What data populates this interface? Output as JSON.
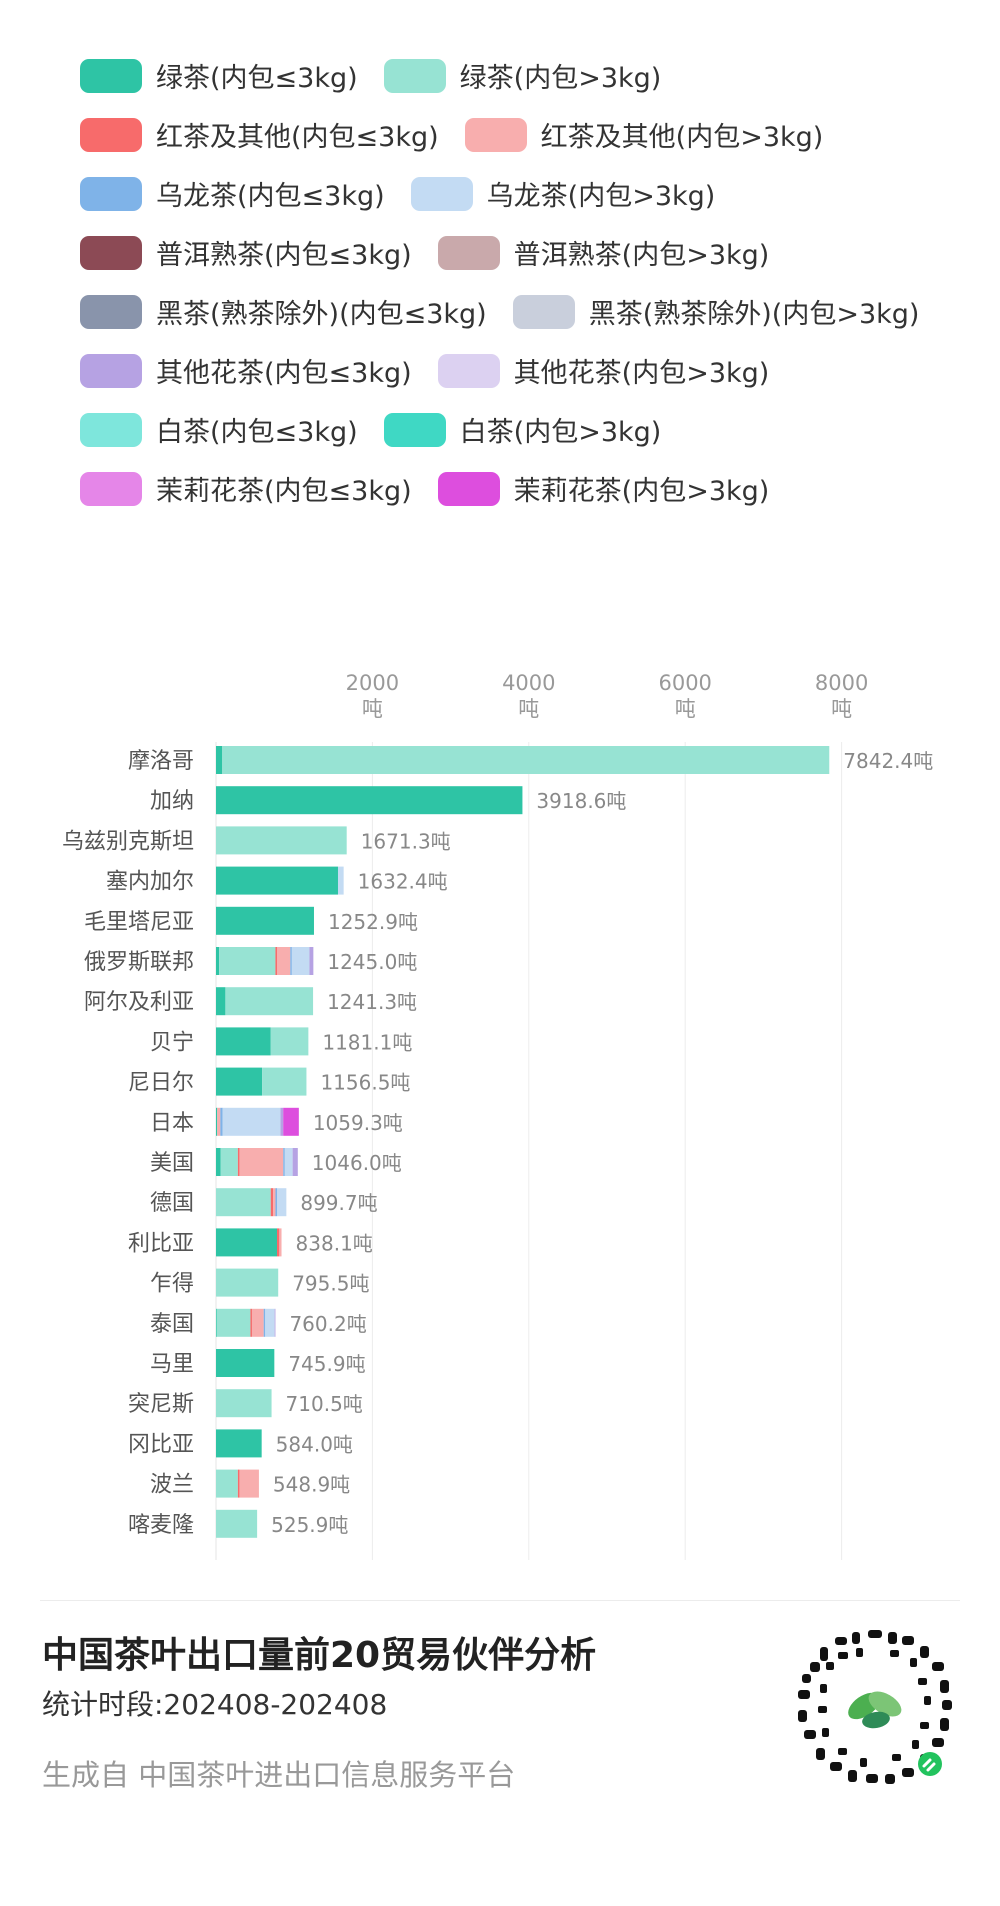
{
  "legend": [
    {
      "label": "绿茶(内包≤3kg)",
      "color": "#2ec4a5"
    },
    {
      "label": "绿茶(内包>3kg)",
      "color": "#97e3d3"
    },
    {
      "label": "红茶及其他(内包≤3kg)",
      "color": "#f76b6b"
    },
    {
      "label": "红茶及其他(内包>3kg)",
      "color": "#f8aeae"
    },
    {
      "label": "乌龙茶(内包≤3kg)",
      "color": "#7fb3e8"
    },
    {
      "label": "乌龙茶(内包>3kg)",
      "color": "#c3dbf3"
    },
    {
      "label": "普洱熟茶(内包≤3kg)",
      "color": "#8c4a55"
    },
    {
      "label": "普洱熟茶(内包>3kg)",
      "color": "#c9a9ab"
    },
    {
      "label": "黑茶(熟茶除外)(内包≤3kg)",
      "color": "#8994ab"
    },
    {
      "label": "黑茶(熟茶除外)(内包>3kg)",
      "color": "#c9cfdc"
    },
    {
      "label": "其他花茶(内包≤3kg)",
      "color": "#b6a2e3"
    },
    {
      "label": "其他花茶(内包>3kg)",
      "color": "#dcd1f1"
    },
    {
      "label": "白茶(内包≤3kg)",
      "color": "#7ee6dc"
    },
    {
      "label": "白茶(内包>3kg)",
      "color": "#3fd8c4"
    },
    {
      "label": "茉莉花茶(内包≤3kg)",
      "color": "#e586e8"
    },
    {
      "label": "茉莉花茶(内包>3kg)",
      "color": "#dd4ede"
    }
  ],
  "chart_data": {
    "type": "bar",
    "orientation": "horizontal",
    "stacked": true,
    "title": "",
    "xlabel": "",
    "ylabel": "",
    "xlim": [
      0,
      8400
    ],
    "x_ticks": [
      {
        "value": 2000,
        "label": "2000",
        "unit": "吨"
      },
      {
        "value": 4000,
        "label": "4000",
        "unit": "吨"
      },
      {
        "value": 6000,
        "label": "6000",
        "unit": "吨"
      },
      {
        "value": 8000,
        "label": "8000",
        "unit": "吨"
      }
    ],
    "grid": true,
    "legend_position": "top",
    "value_suffix": "吨",
    "categories": [
      "摩洛哥",
      "加纳",
      "乌兹别克斯坦",
      "塞内加尔",
      "毛里塔尼亚",
      "俄罗斯联邦",
      "阿尔及利亚",
      "贝宁",
      "尼日尔",
      "日本",
      "美国",
      "德国",
      "利比亚",
      "乍得",
      "泰国",
      "马里",
      "突尼斯",
      "冈比亚",
      "波兰",
      "喀麦隆"
    ],
    "totals": [
      7842.4,
      3918.6,
      1671.3,
      1632.4,
      1252.9,
      1245.0,
      1241.3,
      1181.1,
      1156.5,
      1059.3,
      1046.0,
      899.7,
      838.1,
      795.5,
      760.2,
      745.9,
      710.5,
      584.0,
      548.9,
      525.9
    ],
    "total_labels": [
      "7842.4吨",
      "3918.6吨",
      "1671.3吨",
      "1632.4吨",
      "1252.9吨",
      "1245.0吨",
      "1241.3吨",
      "1181.1吨",
      "1156.5吨",
      "1059.3吨",
      "1046.0吨",
      "899.7吨",
      "838.1吨",
      "795.5吨",
      "760.2吨",
      "745.9吨",
      "710.5吨",
      "584.0吨",
      "548.9吨",
      "525.9吨"
    ],
    "series": [
      {
        "name": "绿茶(内包≤3kg)",
        "color": "#2ec4a5",
        "values": [
          80,
          3918.6,
          0,
          1560,
          1252.9,
          40,
          120,
          700,
          590,
          15,
          60,
          0,
          780,
          0,
          10,
          745.9,
          0,
          584.0,
          0,
          0
        ]
      },
      {
        "name": "绿茶(内包>3kg)",
        "color": "#97e3d3",
        "values": [
          7762.4,
          0,
          1671.3,
          0,
          0,
          720,
          1121.3,
          481.1,
          566.5,
          0,
          220,
          700,
          0,
          795.5,
          430,
          0,
          710.5,
          0,
          280,
          525.9
        ]
      },
      {
        "name": "红茶及其他(内包≤3kg)",
        "color": "#f76b6b",
        "values": [
          0,
          0,
          0,
          0,
          0,
          20,
          0,
          0,
          0,
          0,
          20,
          30,
          30,
          0,
          20,
          0,
          0,
          0,
          20,
          0
        ]
      },
      {
        "name": "红茶及其他(内包>3kg)",
        "color": "#f8aeae",
        "values": [
          0,
          0,
          0,
          0,
          0,
          170,
          0,
          0,
          0,
          40,
          560,
          30,
          28.1,
          0,
          150,
          0,
          0,
          0,
          248.9,
          0
        ]
      },
      {
        "name": "乌龙茶(内包≤3kg)",
        "color": "#7fb3e8",
        "values": [
          0,
          0,
          0,
          0,
          0,
          20,
          0,
          0,
          0,
          30,
          20,
          20,
          0,
          0,
          20,
          0,
          0,
          0,
          0,
          0
        ]
      },
      {
        "name": "乌龙茶(内包>3kg)",
        "color": "#c3dbf3",
        "values": [
          0,
          0,
          0,
          72.4,
          0,
          225,
          0,
          0,
          0,
          740,
          100,
          119.7,
          0,
          0,
          120,
          0,
          0,
          0,
          0,
          0
        ]
      },
      {
        "name": "其他花茶(内包≤3kg)",
        "color": "#b6a2e3",
        "values": [
          0,
          0,
          0,
          0,
          0,
          50,
          0,
          0,
          0,
          34.3,
          66,
          0,
          0,
          0,
          10.2,
          0,
          0,
          0,
          0,
          0
        ]
      },
      {
        "name": "茉莉花茶(内包>3kg)",
        "color": "#dd4ede",
        "values": [
          0,
          0,
          0,
          0,
          0,
          0,
          0,
          0,
          0,
          200,
          0,
          0,
          0,
          0,
          0,
          0,
          0,
          0,
          0,
          0
        ]
      }
    ]
  },
  "footer": {
    "title": "中国茶叶出口量前20贸易伙伴分析",
    "period": "统计时段:202408-202408",
    "source": "生成自 中国茶叶进出口信息服务平台"
  }
}
